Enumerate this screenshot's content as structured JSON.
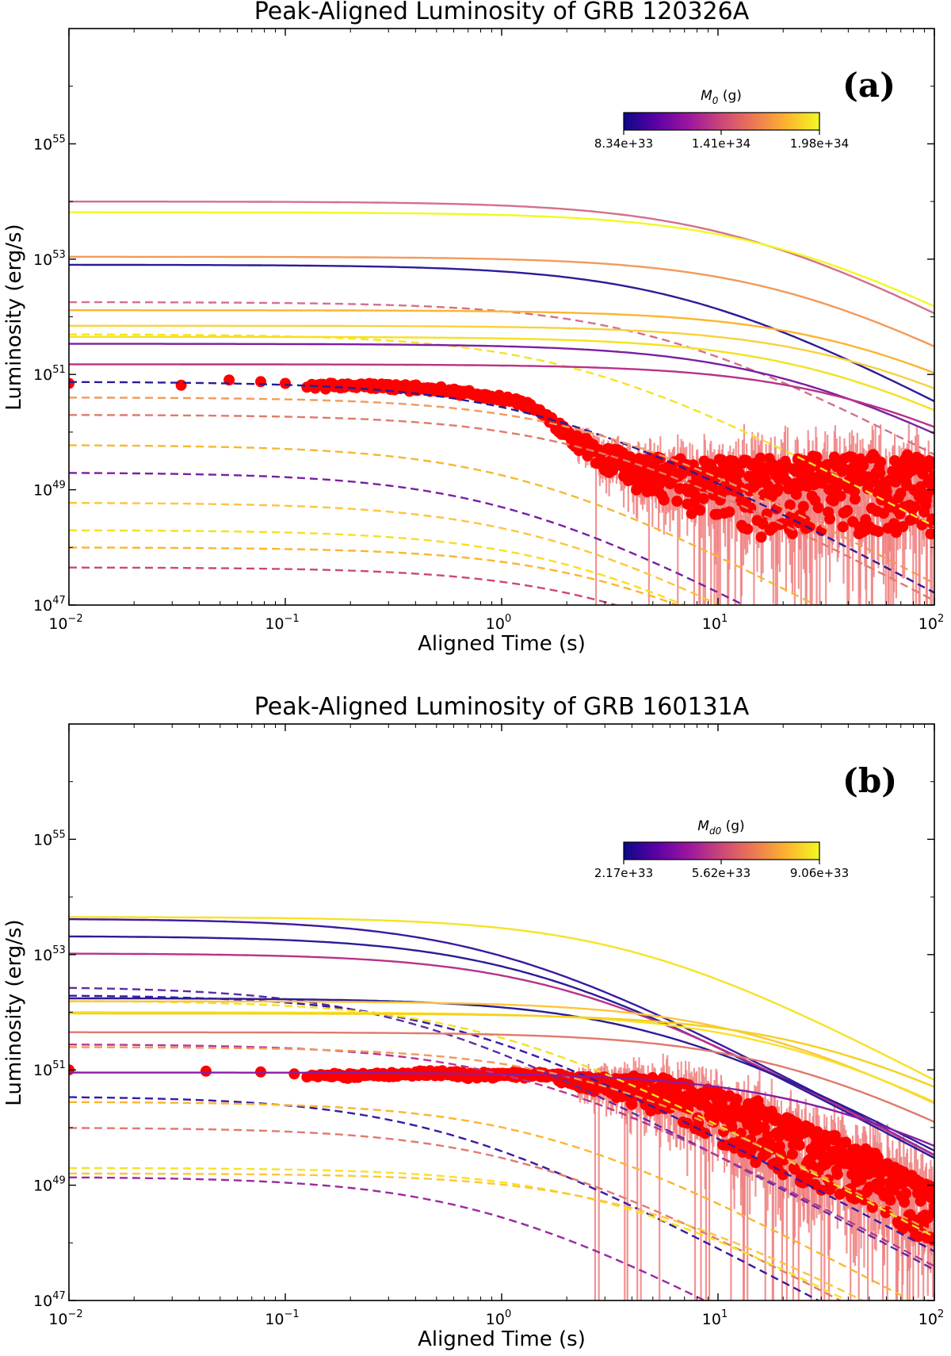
{
  "figure": {
    "panels": [
      {
        "title": "Peak-Aligned Luminosity of GRB 120326A",
        "letter": "(a)",
        "xlabel": "Aligned Time (s)",
        "ylabel": "Luminosity  (erg/s)",
        "colorbar": {
          "label_main": "M",
          "label_sub": "0",
          "label_unit": " (g)",
          "ticks": [
            "8.34e+33",
            "1.41e+34",
            "1.98e+34"
          ],
          "cmap": [
            "#0d0887",
            "#5c01a6",
            "#9c179e",
            "#cc4778",
            "#ed7953",
            "#fdb42f",
            "#f0f921"
          ]
        }
      },
      {
        "title": "Peak-Aligned Luminosity of GRB 160131A",
        "letter": "(b)",
        "xlabel": "Aligned Time (s)",
        "ylabel": "Luminosity  (erg/s)",
        "colorbar": {
          "label_main": "M",
          "label_sub": "d0",
          "label_unit": " (g)",
          "ticks": [
            "2.17e+33",
            "5.62e+33",
            "9.06e+33"
          ],
          "cmap": [
            "#0d0887",
            "#5c01a6",
            "#9c179e",
            "#cc4778",
            "#ed7953",
            "#fdb42f",
            "#f0f921"
          ]
        }
      }
    ],
    "x_ticks": [
      {
        "base": "10",
        "exp": "−2"
      },
      {
        "base": "10",
        "exp": "−1"
      },
      {
        "base": "10",
        "exp": "0"
      },
      {
        "base": "10",
        "exp": "1"
      },
      {
        "base": "10",
        "exp": "2"
      }
    ],
    "y_ticks": [
      {
        "base": "10",
        "exp": "47"
      },
      {
        "base": "10",
        "exp": "49"
      },
      {
        "base": "10",
        "exp": "51"
      },
      {
        "base": "10",
        "exp": "53"
      },
      {
        "base": "10",
        "exp": "55"
      }
    ]
  },
  "chart_data": [
    {
      "type": "line",
      "title": "Peak-Aligned Luminosity of GRB 120326A",
      "xlabel": "Aligned Time (s)",
      "ylabel": "Luminosity  (erg/s)",
      "xscale": "log",
      "yscale": "log",
      "xlim": [
        0.01,
        100
      ],
      "ylim": [
        1e+47,
        1e+57
      ],
      "grid": false,
      "colorbar_label": "M0 (g)",
      "colorbar_range": [
        8.34e+33,
        1.98e+34
      ],
      "models_solid": [
        {
          "L0": 1e+54,
          "tb": 12,
          "color": "#d4708a"
        },
        {
          "L0": 6.5e+53,
          "tb": 18,
          "color": "#f0f921"
        },
        {
          "L0": 1.1e+53,
          "tb": 20,
          "color": "#f29a5a"
        },
        {
          "L0": 8e+52,
          "tb": 7,
          "color": "#2c1c96"
        },
        {
          "L0": 1.3e+52,
          "tb": 40,
          "color": "#fdb42f"
        },
        {
          "L0": 7e+51,
          "tb": 40,
          "color": "#f7d13d"
        },
        {
          "L0": 4.5e+51,
          "tb": 30,
          "color": "#f5e020"
        },
        {
          "L0": 3.4e+51,
          "tb": 20,
          "color": "#7a1fa2"
        },
        {
          "L0": 1.5e+51,
          "tb": 40,
          "color": "#b83289"
        }
      ],
      "models_dashed": [
        {
          "L0": 1.8e+52,
          "tb": 5,
          "color": "#d4708a"
        },
        {
          "L0": 5e+51,
          "tb": 2.2,
          "color": "#f7e225"
        },
        {
          "L0": 7.5e+50,
          "tb": 1.5,
          "color": "#2c1c96"
        },
        {
          "L0": 4e+50,
          "tb": 2.5,
          "color": "#f29a5a"
        },
        {
          "L0": 2e+50,
          "tb": 2.5,
          "color": "#e07a6c"
        },
        {
          "L0": 6e+49,
          "tb": 1.2,
          "color": "#f7b733"
        },
        {
          "L0": 2e+49,
          "tb": 1.0,
          "color": "#7a1fa2"
        },
        {
          "L0": 6e+48,
          "tb": 1.5,
          "color": "#fdc43f"
        },
        {
          "L0": 2e+48,
          "tb": 2.0,
          "color": "#f5e020"
        },
        {
          "L0": 1e+48,
          "tb": 3.0,
          "color": "#fdb42f"
        },
        {
          "L0": 4.5e+47,
          "tb": 3.0,
          "color": "#cc4778"
        }
      ],
      "observed": {
        "name": "observed",
        "points": [
          [
            0.01,
            7e+50
          ],
          [
            0.033,
            6.5e+50
          ],
          [
            0.055,
            8e+50
          ],
          [
            0.077,
            7.5e+50
          ],
          [
            0.1,
            7e+50
          ],
          [
            0.13,
            6.8e+50
          ],
          [
            0.17,
            6.5e+50
          ],
          [
            0.22,
            6.6e+50
          ],
          [
            0.3,
            6.4e+50
          ],
          [
            0.4,
            6.1e+50
          ],
          [
            0.55,
            5.6e+50
          ],
          [
            0.7,
            4.9e+50
          ],
          [
            0.9,
            4.3e+50
          ],
          [
            1.2,
            3.5e+50
          ],
          [
            1.5,
            2.4e+50
          ],
          [
            1.8,
            1.5e+50
          ],
          [
            2.2,
            9e+49
          ],
          [
            2.8,
            6.5e+49
          ],
          [
            3.5,
            4.5e+49
          ],
          [
            4.5,
            4e+49
          ],
          [
            6.0,
            3.5e+49
          ],
          [
            8.0,
            3e+49
          ],
          [
            10.0,
            3.3e+49
          ],
          [
            15.0,
            3.5e+49
          ],
          [
            20.0,
            3.8e+49
          ],
          [
            30.0,
            4e+49
          ],
          [
            45.0,
            4e+49
          ],
          [
            70.0,
            3.9e+49
          ],
          [
            100.0,
            3.8e+49
          ]
        ]
      }
    },
    {
      "type": "line",
      "title": "Peak-Aligned Luminosity of GRB 160131A",
      "xlabel": "Aligned Time (s)",
      "ylabel": "Luminosity  (erg/s)",
      "xscale": "log",
      "yscale": "log",
      "xlim": [
        0.01,
        100
      ],
      "ylim": [
        1e+47,
        1e+57
      ],
      "grid": false,
      "colorbar_label": "Md0 (g)",
      "colorbar_range": [
        2.17e+33,
        9.06e+33
      ],
      "models_solid": [
        {
          "L0": 4.5e+53,
          "tb": 4,
          "color": "#f7e225"
        },
        {
          "L0": 4.2e+53,
          "tb": 0.9,
          "color": "#3b1aa0"
        },
        {
          "L0": 2.1e+53,
          "tb": 1.2,
          "color": "#2c1c96"
        },
        {
          "L0": 1.05e+53,
          "tb": 1.8,
          "color": "#b83289"
        },
        {
          "L0": 1.75e+52,
          "tb": 5,
          "color": "#2c1c96"
        },
        {
          "L0": 1.55e+52,
          "tb": 15,
          "color": "#fdc43f"
        },
        {
          "L0": 1e+52,
          "tb": 20,
          "color": "#f7e225"
        },
        {
          "L0": 9.5e+51,
          "tb": 30,
          "color": "#f5d020"
        },
        {
          "L0": 4.5e+51,
          "tb": 20,
          "color": "#e07a6c"
        },
        {
          "L0": 9e+50,
          "tb": 30,
          "color": "#8b1ca3"
        }
      ],
      "models_dashed": [
        {
          "L0": 2.8e+52,
          "tb": 0.35,
          "color": "#5c2da6"
        },
        {
          "L0": 2e+52,
          "tb": 0.6,
          "color": "#3b1aa0"
        },
        {
          "L0": 1.6e+52,
          "tb": 0.9,
          "color": "#f5e020"
        },
        {
          "L0": 2.8e+51,
          "tb": 1.2,
          "color": "#b8378f"
        },
        {
          "L0": 2.5e+51,
          "tb": 2.5,
          "color": "#f29a5a"
        },
        {
          "L0": 3.5e+50,
          "tb": 0.5,
          "color": "#3b1aa0"
        },
        {
          "L0": 2.8e+50,
          "tb": 1.5,
          "color": "#fdb42f"
        },
        {
          "L0": 1e+50,
          "tb": 1.2,
          "color": "#e07a6c"
        },
        {
          "L0": 2e+49,
          "tb": 3,
          "color": "#f7e225"
        },
        {
          "L0": 1.6e+49,
          "tb": 4,
          "color": "#fdc43f"
        },
        {
          "L0": 1.4e+49,
          "tb": 0.8,
          "color": "#9c2aa0"
        }
      ],
      "observed": {
        "name": "observed",
        "points": [
          [
            0.01,
            1e+51
          ],
          [
            0.043,
            9.5e+50
          ],
          [
            0.077,
            9.2e+50
          ],
          [
            0.11,
            8.5e+50
          ],
          [
            0.15,
            8e+50
          ],
          [
            0.2,
            8.2e+50
          ],
          [
            0.3,
            8.5e+50
          ],
          [
            0.4,
            9e+50
          ],
          [
            0.55,
            9.5e+50
          ],
          [
            0.7,
            8e+50
          ],
          [
            1.0,
            8.8e+50
          ],
          [
            1.5,
            8.5e+50
          ],
          [
            2.0,
            8e+50
          ],
          [
            3.0,
            7.8e+50
          ],
          [
            4.0,
            7.5e+50
          ],
          [
            6.0,
            6.8e+50
          ],
          [
            8.0,
            5.5e+50
          ],
          [
            10.0,
            4.2e+50
          ],
          [
            15.0,
            2.8e+50
          ],
          [
            20.0,
            1.8e+50
          ],
          [
            30.0,
            1e+50
          ],
          [
            45.0,
            5e+49
          ],
          [
            70.0,
            2e+49
          ],
          [
            100.0,
            1e+49
          ]
        ]
      }
    }
  ]
}
